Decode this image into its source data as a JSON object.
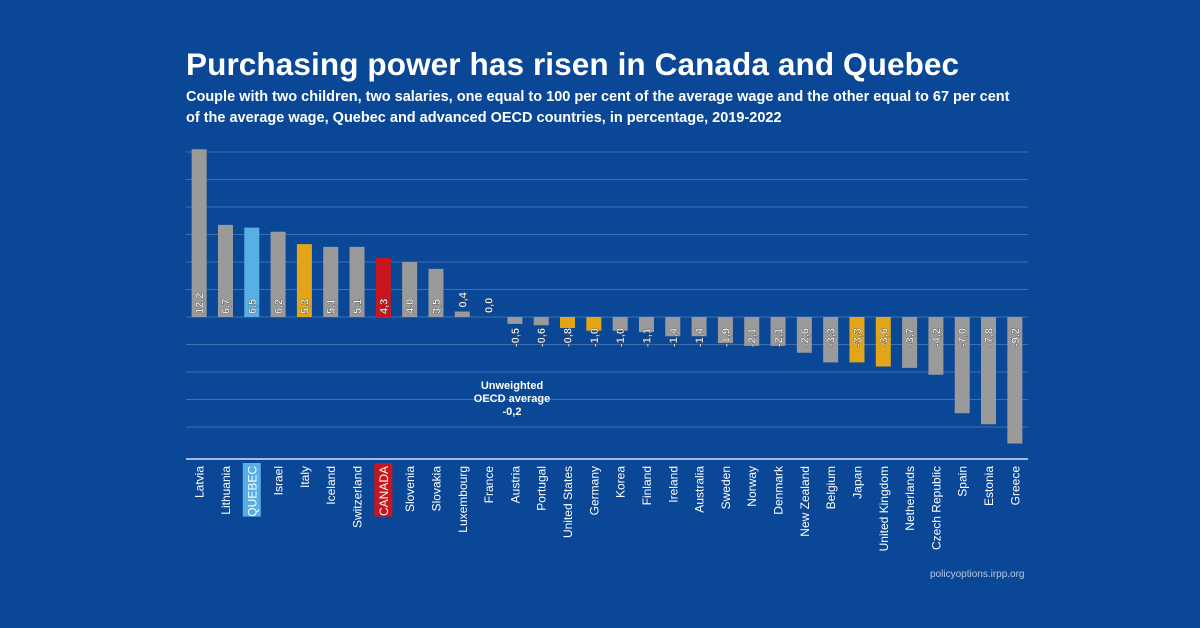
{
  "title": "Purchasing power has risen in Canada and Quebec",
  "subtitle": "Couple with two children, two salaries, one equal to 100 per cent of the average wage and the other equal to 67 per cent of the average wage, Quebec and advanced OECD countries, in percentage, 2019-2022",
  "source": "policyoptions.irpp.org",
  "annotation": {
    "line1": "Unweighted",
    "line2": "OECD average",
    "line3": "-0,2"
  },
  "colors": {
    "background": "#0a4897",
    "default_bar": "#9a9a9a",
    "quebec": "#5aaee6",
    "canada": "#c8161e",
    "highlight": "#e3a518",
    "grid": "#3f6fae"
  },
  "chart_data": {
    "type": "bar",
    "title": "Purchasing power has risen in Canada and Quebec",
    "xlabel": "",
    "ylabel": "",
    "ylim": [
      -10,
      12.6
    ],
    "grid": true,
    "categories": [
      "Latvia",
      "Lithuania",
      "QUEBEC",
      "Israel",
      "Italy",
      "Iceland",
      "Switzerland",
      "CANADA",
      "Slovenia",
      "Slovakia",
      "Luxembourg",
      "France",
      "Austria",
      "Portugal",
      "United States",
      "Germany",
      "Korea",
      "Finland",
      "Ireland",
      "Australia",
      "Sweden",
      "Norway",
      "Denmark",
      "New Zealand",
      "Belgium",
      "Japan",
      "United Kingdom",
      "Netherlands",
      "Czech Republic",
      "Spain",
      "Estonia",
      "Greece"
    ],
    "values": [
      12.2,
      6.7,
      6.5,
      6.2,
      5.3,
      5.1,
      5.1,
      4.3,
      4.0,
      3.5,
      0.4,
      0.0,
      -0.5,
      -0.6,
      -0.8,
      -1.0,
      -1.0,
      -1.1,
      -1.4,
      -1.4,
      -1.9,
      -2.1,
      -2.1,
      -2.6,
      -3.3,
      -3.3,
      -3.6,
      -3.7,
      -4.2,
      -7.0,
      -7.8,
      -9.2
    ],
    "value_labels": [
      "12,2",
      "6,7",
      "6,5",
      "6,2",
      "5,3",
      "5,1",
      "5,1",
      "4,3",
      "4,0",
      "3,5",
      "0,4",
      "0,0",
      "-0,5",
      "-0,6",
      "-0,8",
      "-1,0",
      "-1,0",
      "-1,1",
      "-1,4",
      "-1,4",
      "-1,9",
      "-2,1",
      "-2,1",
      "-2,6",
      "-3,3",
      "-3,3",
      "-3,6",
      "-3,7",
      "-4,2",
      "-7,0",
      "-7,8",
      "-9,2"
    ],
    "bar_color_keys": [
      "default_bar",
      "default_bar",
      "quebec",
      "default_bar",
      "highlight",
      "default_bar",
      "default_bar",
      "canada",
      "default_bar",
      "default_bar",
      "default_bar",
      "default_bar",
      "default_bar",
      "default_bar",
      "highlight",
      "highlight",
      "default_bar",
      "default_bar",
      "default_bar",
      "default_bar",
      "default_bar",
      "default_bar",
      "default_bar",
      "default_bar",
      "default_bar",
      "highlight",
      "highlight",
      "default_bar",
      "default_bar",
      "default_bar",
      "default_bar",
      "default_bar"
    ],
    "boxed_labels": [
      "QUEBEC",
      "CANADA"
    ],
    "gridlines": [
      12,
      10,
      8,
      6,
      4,
      2,
      0,
      -2,
      -4,
      -6,
      -8
    ]
  }
}
